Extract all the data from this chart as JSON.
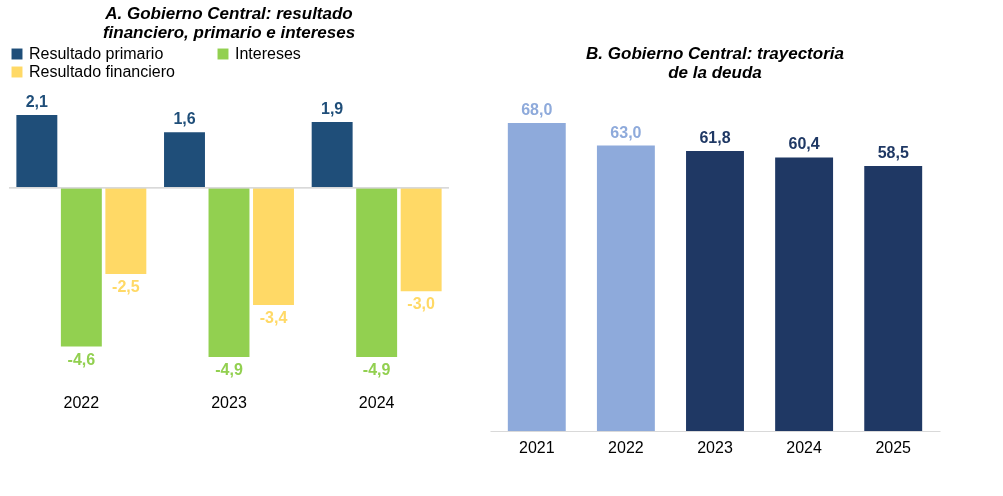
{
  "chart_data": [
    {
      "type": "bar",
      "title": "A.   Gobierno Central: resultado financiero, primario e intereses",
      "categories": [
        "2022",
        "2023",
        "2024"
      ],
      "legend": "top left",
      "series": [
        {
          "name": "Resultado primario",
          "color": "#1f4e79",
          "values": [
            2.1,
            1.6,
            1.9
          ],
          "value_labels": [
            "2,1",
            "1,6",
            "1,9"
          ]
        },
        {
          "name": "Intereses",
          "color": "#92d050",
          "values": [
            -4.6,
            -4.9,
            -4.9
          ],
          "value_labels": [
            "-4,6",
            "-4,9",
            "-4,9"
          ]
        },
        {
          "name": "Resultado financiero",
          "color": "#ffd966",
          "values": [
            -2.5,
            -3.4,
            -3.0
          ],
          "value_labels": [
            "-2,5",
            "-3,4",
            "-3,0"
          ]
        }
      ]
    },
    {
      "type": "bar",
      "title": "B. Gobierno Central: trayectoria de la deuda",
      "categories": [
        "2021",
        "2022",
        "2023",
        "2024",
        "2025"
      ],
      "legend": false,
      "series": [
        {
          "colors": [
            "#8eaadb",
            "#8eaadb",
            "#1f3864",
            "#1f3864",
            "#1f3864"
          ],
          "values": [
            68.0,
            63.0,
            61.8,
            60.4,
            58.5
          ],
          "value_labels": [
            "68,0",
            "63,0",
            "61,8",
            "60,4",
            "58,5"
          ]
        }
      ]
    }
  ]
}
